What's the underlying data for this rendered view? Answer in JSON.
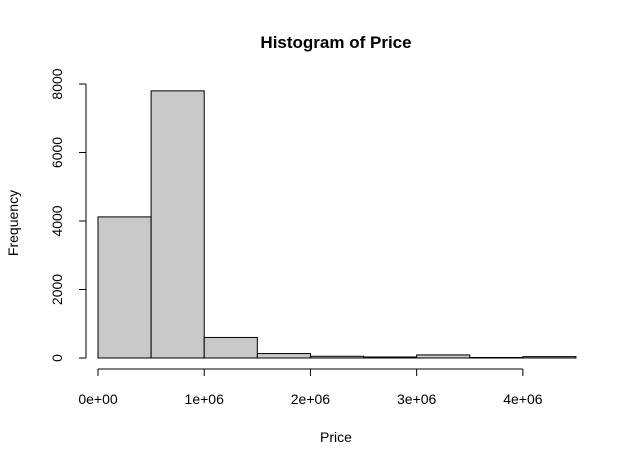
{
  "chart_data": {
    "type": "bar",
    "title": "Histogram of Price",
    "xlabel": "Price",
    "ylabel": "Frequency",
    "bin_edges": [
      0,
      500000,
      1000000,
      1500000,
      2000000,
      2500000,
      3000000,
      3500000,
      4000000,
      4500000
    ],
    "values": [
      4120,
      7800,
      600,
      130,
      50,
      30,
      90,
      15,
      40
    ],
    "xlim": [
      0,
      4500000
    ],
    "ylim": [
      0,
      8000
    ],
    "x_ticks": [
      0,
      1000000,
      2000000,
      3000000,
      4000000
    ],
    "x_tick_labels": [
      "0e+00",
      "1e+06",
      "2e+06",
      "3e+06",
      "4e+06"
    ],
    "y_ticks": [
      0,
      2000,
      4000,
      6000,
      8000
    ],
    "y_tick_labels": [
      "0",
      "2000",
      "4000",
      "6000",
      "8000"
    ],
    "bar_color": "#c8c8c8",
    "grid": false
  }
}
